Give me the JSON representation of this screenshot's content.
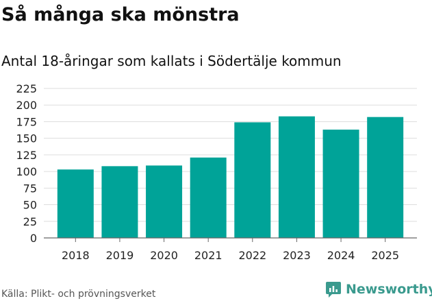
{
  "title": "Så många ska mönstra",
  "subtitle": "Antal 18-åringar som kallats i Södertälje kommun",
  "source": "Källa: Plikt- och prövningsverket",
  "brand": {
    "name": "Newsworthy",
    "color": "#3a9a8e"
  },
  "chart_data": {
    "type": "bar",
    "title": "Så många ska mönstra",
    "subtitle": "Antal 18-åringar som kallats i Södertälje kommun",
    "xlabel": "",
    "ylabel": "",
    "categories": [
      "2018",
      "2019",
      "2020",
      "2021",
      "2022",
      "2023",
      "2024",
      "2025"
    ],
    "values": [
      103,
      108,
      109,
      121,
      174,
      183,
      163,
      182
    ],
    "ylim": [
      0,
      225
    ],
    "yticks": [
      "0",
      "25",
      "50",
      "75",
      "100",
      "125",
      "150",
      "175",
      "200",
      "225"
    ],
    "grid": true,
    "legend": "none",
    "bar_color": "#00a398",
    "grid_color": "#dddddd",
    "axis_color": "#666666"
  }
}
